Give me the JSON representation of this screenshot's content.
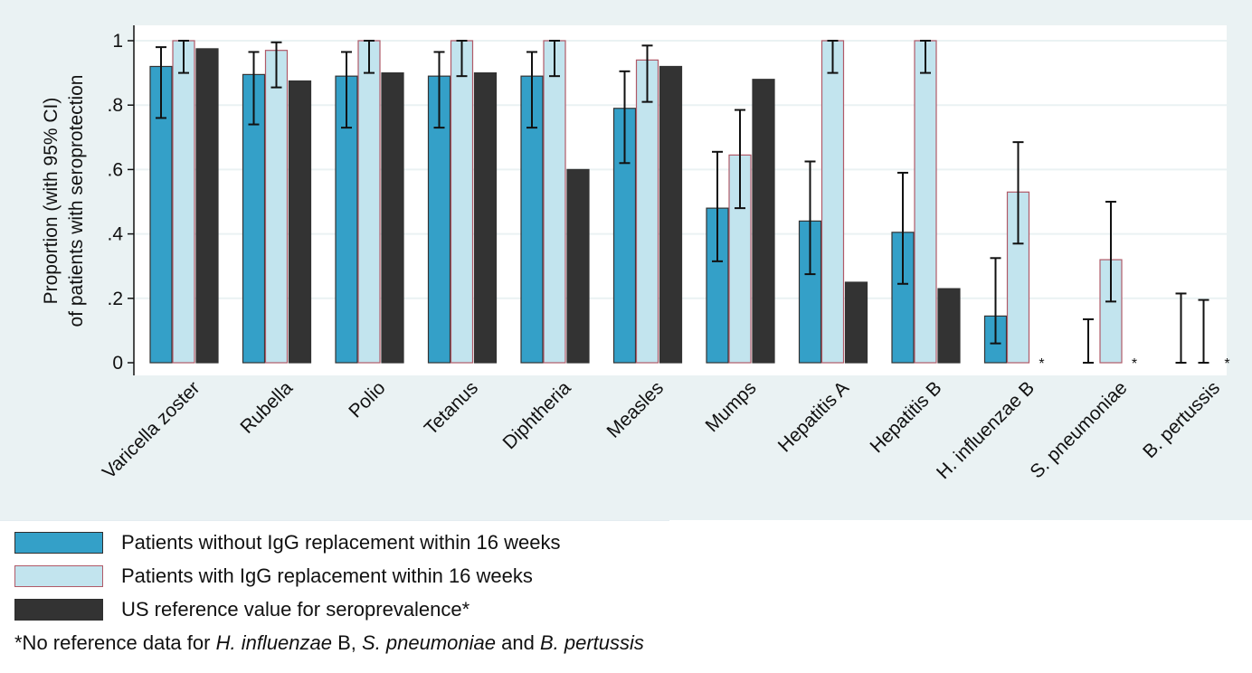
{
  "chart_data": {
    "type": "bar",
    "title": "",
    "ylabel_line1": "Proportion (with 95% CI)",
    "ylabel_line2": "of patients with seroprotection",
    "ylim": [
      0,
      1
    ],
    "yticks": [
      {
        "value": 0,
        "label": "0"
      },
      {
        "value": 0.2,
        "label": ".2"
      },
      {
        "value": 0.4,
        "label": ".4"
      },
      {
        "value": 0.6,
        "label": ".6"
      },
      {
        "value": 0.8,
        "label": ".8"
      },
      {
        "value": 1,
        "label": "1"
      }
    ],
    "grid": true,
    "categories": [
      "Varicella zoster",
      "Rubella",
      "Polio",
      "Tetanus",
      "Diphtheria",
      "Measles",
      "Mumps",
      "Hepatitis A",
      "Hepatitis B",
      "H. influenzae B",
      "S. pneumoniae",
      "B. pertussis"
    ],
    "series": [
      {
        "name": "Patients without IgG replacement within 16 weeks",
        "color": "#34a0c8",
        "values": [
          0.92,
          0.895,
          0.89,
          0.89,
          0.89,
          0.79,
          0.48,
          0.44,
          0.405,
          0.145,
          0,
          0
        ],
        "ci_low": [
          0.76,
          0.74,
          0.73,
          0.73,
          0.73,
          0.62,
          0.315,
          0.275,
          0.245,
          0.06,
          0,
          0
        ],
        "ci_high": [
          0.98,
          0.965,
          0.965,
          0.965,
          0.965,
          0.905,
          0.655,
          0.625,
          0.59,
          0.325,
          0.135,
          0.215
        ]
      },
      {
        "name": "Patients with IgG replacement within 16 weeks",
        "color": "#c2e4ee",
        "values": [
          1,
          0.97,
          1,
          1,
          1,
          0.94,
          0.645,
          1,
          1,
          0.53,
          0.32,
          0
        ],
        "ci_low": [
          0.9,
          0.855,
          0.9,
          0.89,
          0.89,
          0.81,
          0.48,
          0.9,
          0.9,
          0.37,
          0.19,
          0
        ],
        "ci_high": [
          1,
          0.995,
          1,
          1,
          1,
          0.985,
          0.785,
          1,
          1,
          0.685,
          0.5,
          0.195
        ]
      },
      {
        "name": "US reference value for seroprevalence*",
        "color": "#333333",
        "values": [
          0.975,
          0.875,
          0.9,
          0.9,
          0.6,
          0.92,
          0.88,
          0.25,
          0.23,
          null,
          null,
          null
        ],
        "no_data_marker": "*"
      }
    ],
    "legend_position": "bottom-left"
  },
  "footnote": {
    "prefix": "*No reference data for ",
    "term1": "H. influenzae",
    "mid1": " B, ",
    "term2": "S. pneumoniae",
    "mid2": " and ",
    "term3": "B. pertussis"
  },
  "colors": {
    "plot_background": "#eaf2f3",
    "plot_area": "#ffffff",
    "gridline": "#eaf2f3",
    "series2_outline": "#b05a68"
  }
}
